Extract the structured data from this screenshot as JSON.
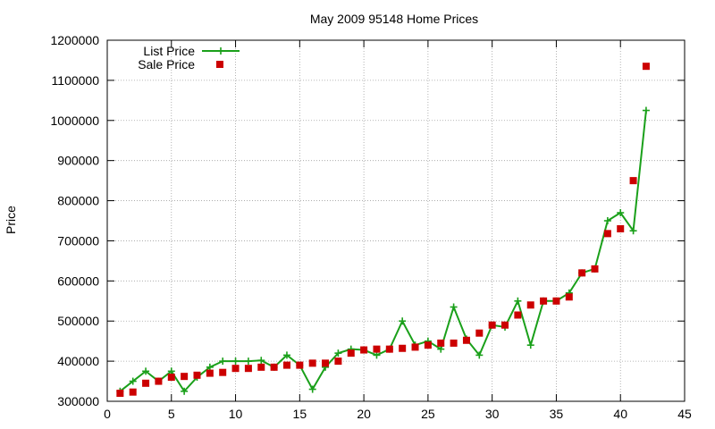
{
  "chart_data": {
    "type": "line",
    "title": "May 2009 95148 Home Prices",
    "xlabel": "",
    "ylabel": "Price",
    "xlim": [
      0,
      45
    ],
    "ylim": [
      300000,
      1200000
    ],
    "x_ticks": [
      0,
      5,
      10,
      15,
      20,
      25,
      30,
      35,
      40,
      45
    ],
    "y_ticks": [
      300000,
      400000,
      500000,
      600000,
      700000,
      800000,
      900000,
      1000000,
      1100000,
      1200000
    ],
    "grid": true,
    "legend_position": "top-left",
    "series": [
      {
        "name": "List Price",
        "style": "line-with-plus-markers",
        "color": "#1aa01a",
        "x": [
          1,
          2,
          3,
          4,
          5,
          6,
          7,
          8,
          9,
          10,
          11,
          12,
          13,
          14,
          15,
          16,
          17,
          18,
          19,
          20,
          21,
          22,
          23,
          24,
          25,
          26,
          27,
          28,
          29,
          30,
          31,
          32,
          33,
          34,
          35,
          36,
          37,
          38,
          39,
          40,
          41,
          42
        ],
        "values": [
          325000,
          350000,
          375000,
          350000,
          375000,
          325000,
          360000,
          385000,
          400000,
          400000,
          400000,
          402000,
          385000,
          415000,
          390000,
          330000,
          385000,
          420000,
          430000,
          428000,
          415000,
          430000,
          500000,
          440000,
          450000,
          430000,
          535000,
          455000,
          415000,
          490000,
          485000,
          550000,
          440000,
          550000,
          550000,
          570000,
          620000,
          630000,
          750000,
          770000,
          725000,
          1025000
        ]
      },
      {
        "name": "Sale Price",
        "style": "square-markers",
        "color": "#cc0000",
        "x": [
          1,
          2,
          3,
          4,
          5,
          6,
          7,
          8,
          9,
          10,
          11,
          12,
          13,
          14,
          15,
          16,
          17,
          18,
          19,
          20,
          21,
          22,
          23,
          24,
          25,
          26,
          27,
          28,
          29,
          30,
          31,
          32,
          33,
          34,
          35,
          36,
          37,
          38,
          39,
          40,
          41,
          42
        ],
        "values": [
          320000,
          323000,
          345000,
          350000,
          360000,
          362000,
          365000,
          370000,
          372000,
          382000,
          382000,
          385000,
          385000,
          390000,
          390000,
          395000,
          395000,
          400000,
          420000,
          428000,
          430000,
          430000,
          432000,
          435000,
          440000,
          445000,
          445000,
          452000,
          470000,
          490000,
          490000,
          515000,
          540000,
          550000,
          550000,
          560000,
          620000,
          630000,
          718000,
          730000,
          850000,
          1135000
        ]
      }
    ]
  }
}
